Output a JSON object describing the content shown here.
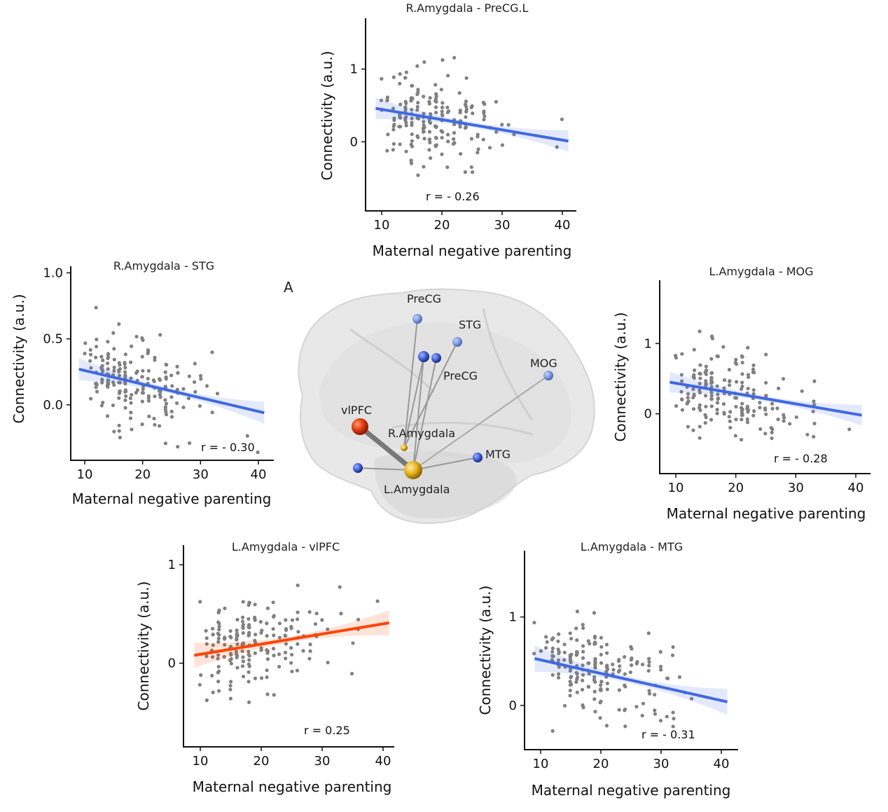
{
  "panel_letter": "A",
  "brain": {
    "labels": [
      "PreCG",
      "STG",
      "PreCG",
      "MOG",
      "vlPFC",
      "R.Amygdala",
      "MTG",
      "L.Amygdala"
    ]
  },
  "colors": {
    "negative_fit": "#4169e1",
    "positive_fit": "#ff4500",
    "points": "#808080",
    "brain_blue": "#3f5fd6",
    "vlpfc": "#e03a10",
    "amygdala": "#e7b21c"
  },
  "chart_data": [
    {
      "type": "scatter",
      "title": "R.Amygdala - PreCG.L",
      "xlabel": "Maternal negative parenting",
      "ylabel": "Connectivity (a.u.)",
      "xticks": [
        10,
        20,
        30,
        40
      ],
      "yticks": [
        "0",
        "1"
      ],
      "xlim": [
        8,
        43
      ],
      "ylim": [
        -0.95,
        1.7
      ],
      "r_label": "r = - 0.26",
      "fit": {
        "x": [
          9,
          41
        ],
        "y": [
          0.46,
          0.01
        ],
        "color": "#4169e1",
        "ci": 0.08
      },
      "n_points": 190,
      "seed": 11
    },
    {
      "type": "scatter",
      "title": "R.Amygdala - STG",
      "xlabel": "Maternal negative parenting",
      "ylabel": "Connectivity (a.u.)",
      "xticks": [
        10,
        20,
        30,
        40
      ],
      "yticks": [
        "0.0",
        "0.5",
        "1.0"
      ],
      "xlim": [
        8,
        43
      ],
      "ylim": [
        -0.42,
        1.05
      ],
      "r_label": "r = - 0.30",
      "fit": {
        "x": [
          9,
          41
        ],
        "y": [
          0.27,
          -0.06
        ],
        "color": "#4169e1",
        "ci": 0.045
      },
      "n_points": 190,
      "seed": 23
    },
    {
      "type": "scatter",
      "title": "L.Amygdala - MOG",
      "xlabel": "Maternal negative parenting",
      "ylabel": "Connectivity (a.u.)",
      "xticks": [
        10,
        20,
        30,
        40
      ],
      "yticks": [
        "0",
        "1"
      ],
      "xlim": [
        8,
        43
      ],
      "ylim": [
        -0.85,
        1.9
      ],
      "r_label": "r = - 0.28",
      "fit": {
        "x": [
          9,
          41
        ],
        "y": [
          0.45,
          -0.02
        ],
        "color": "#4169e1",
        "ci": 0.08
      },
      "n_points": 190,
      "seed": 37
    },
    {
      "type": "scatter",
      "title": "L.Amygdala - vlPFC",
      "xlabel": "Maternal negative parenting",
      "ylabel": "Connectivity (a.u.)",
      "xticks": [
        10,
        20,
        30,
        40
      ],
      "yticks": [
        "0",
        "1"
      ],
      "xlim": [
        8,
        43
      ],
      "ylim": [
        -0.85,
        1.2
      ],
      "r_label": "r = 0.25",
      "fit": {
        "x": [
          9,
          41
        ],
        "y": [
          0.08,
          0.41
        ],
        "color": "#ff4500",
        "ci": 0.07
      },
      "n_points": 190,
      "seed": 51
    },
    {
      "type": "scatter",
      "title": "L.Amygdala - MTG",
      "xlabel": "Maternal negative parenting",
      "ylabel": "Connectivity (a.u.)",
      "xticks": [
        10,
        20,
        30,
        40
      ],
      "yticks": [
        "0",
        "1"
      ],
      "xlim": [
        8,
        43
      ],
      "ylim": [
        -0.5,
        1.75
      ],
      "r_label": "r = - 0.31",
      "fit": {
        "x": [
          9,
          41
        ],
        "y": [
          0.53,
          0.04
        ],
        "color": "#4169e1",
        "ci": 0.08
      },
      "n_points": 190,
      "seed": 67
    }
  ]
}
